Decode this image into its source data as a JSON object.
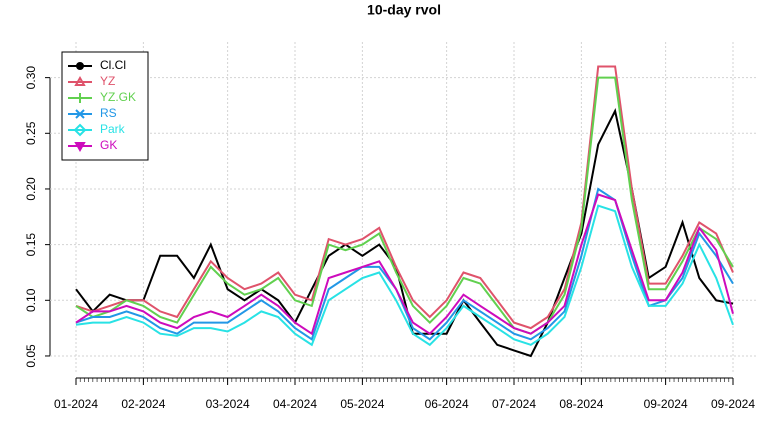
{
  "chart_data": {
    "type": "line",
    "title": "10-day rvol",
    "categories": [
      "01-2024",
      null,
      null,
      null,
      "02-2024",
      null,
      null,
      null,
      null,
      "03-2024",
      null,
      null,
      null,
      "04-2024",
      null,
      null,
      null,
      "05-2024",
      null,
      null,
      null,
      null,
      "06-2024",
      null,
      null,
      null,
      "07-2024",
      null,
      null,
      null,
      "08-2024",
      null,
      null,
      null,
      null,
      "09-2024",
      null,
      null,
      null,
      "09-2024"
    ],
    "ylim": [
      0.0356,
      0.332
    ],
    "yticks": [
      0.05,
      {
        "value": 0.1,
        "label": "0.10"
      },
      0.15,
      {
        "value": 0.2,
        "label": "0.20"
      },
      0.25,
      {
        "value": 0.3,
        "label": "0.30"
      }
    ],
    "grid": true,
    "legend": "topleft",
    "series": [
      {
        "name": "Cl.Cl",
        "color": "#000000",
        "marker": "circle",
        "values": [
          0.11,
          0.09,
          0.105,
          0.1,
          0.1,
          0.14,
          0.14,
          0.12,
          0.15,
          0.11,
          0.1,
          0.11,
          0.1,
          0.08,
          0.11,
          0.14,
          0.15,
          0.14,
          0.15,
          0.13,
          0.07,
          0.07,
          0.07,
          0.1,
          0.08,
          0.06,
          0.055,
          0.05,
          0.08,
          0.12,
          0.16,
          0.24,
          0.27,
          0.2,
          0.12,
          0.13,
          0.17,
          0.12,
          0.1,
          0.097
        ]
      },
      {
        "name": "YZ",
        "color": "#DF536B",
        "marker": "triangle",
        "values": [
          0.095,
          0.09,
          0.095,
          0.1,
          0.1,
          0.09,
          0.085,
          0.11,
          0.135,
          0.12,
          0.11,
          0.115,
          0.125,
          0.105,
          0.1,
          0.155,
          0.15,
          0.155,
          0.165,
          0.13,
          0.1,
          0.085,
          0.1,
          0.125,
          0.12,
          0.1,
          0.08,
          0.075,
          0.085,
          0.11,
          0.17,
          0.31,
          0.31,
          0.2,
          0.115,
          0.115,
          0.14,
          0.17,
          0.16,
          0.125
        ]
      },
      {
        "name": "YZ.GK",
        "color": "#61D04F",
        "marker": "plus",
        "values": [
          0.095,
          0.085,
          0.09,
          0.1,
          0.095,
          0.085,
          0.08,
          0.105,
          0.13,
          0.115,
          0.105,
          0.11,
          0.12,
          0.1,
          0.095,
          0.15,
          0.145,
          0.15,
          0.16,
          0.125,
          0.095,
          0.08,
          0.095,
          0.12,
          0.115,
          0.095,
          0.075,
          0.07,
          0.08,
          0.105,
          0.165,
          0.3,
          0.3,
          0.19,
          0.11,
          0.11,
          0.135,
          0.165,
          0.155,
          0.13
        ]
      },
      {
        "name": "RS",
        "color": "#2297E6",
        "marker": "cross",
        "values": [
          0.08,
          0.085,
          0.085,
          0.09,
          0.085,
          0.075,
          0.07,
          0.08,
          0.08,
          0.08,
          0.09,
          0.1,
          0.09,
          0.075,
          0.065,
          0.11,
          0.12,
          0.13,
          0.13,
          0.11,
          0.075,
          0.065,
          0.08,
          0.1,
          0.09,
          0.08,
          0.07,
          0.065,
          0.075,
          0.09,
          0.14,
          0.2,
          0.19,
          0.14,
          0.095,
          0.1,
          0.12,
          0.16,
          0.14,
          0.115
        ]
      },
      {
        "name": "Park",
        "color": "#28E2E5",
        "marker": "diamond",
        "values": [
          0.078,
          0.08,
          0.08,
          0.085,
          0.08,
          0.07,
          0.068,
          0.075,
          0.075,
          0.072,
          0.08,
          0.09,
          0.085,
          0.07,
          0.06,
          0.1,
          0.11,
          0.12,
          0.125,
          0.1,
          0.07,
          0.06,
          0.075,
          0.095,
          0.085,
          0.075,
          0.065,
          0.06,
          0.07,
          0.085,
          0.13,
          0.185,
          0.18,
          0.13,
          0.095,
          0.095,
          0.115,
          0.15,
          0.12,
          0.078
        ]
      },
      {
        "name": "GK",
        "color": "#CD0BBC",
        "marker": "down",
        "values": [
          0.08,
          0.09,
          0.09,
          0.095,
          0.09,
          0.08,
          0.075,
          0.085,
          0.09,
          0.085,
          0.095,
          0.105,
          0.095,
          0.08,
          0.07,
          0.12,
          0.125,
          0.13,
          0.135,
          0.11,
          0.08,
          0.07,
          0.085,
          0.105,
          0.095,
          0.085,
          0.075,
          0.07,
          0.08,
          0.095,
          0.15,
          0.195,
          0.19,
          0.145,
          0.1,
          0.1,
          0.125,
          0.165,
          0.145,
          0.088
        ]
      }
    ]
  }
}
